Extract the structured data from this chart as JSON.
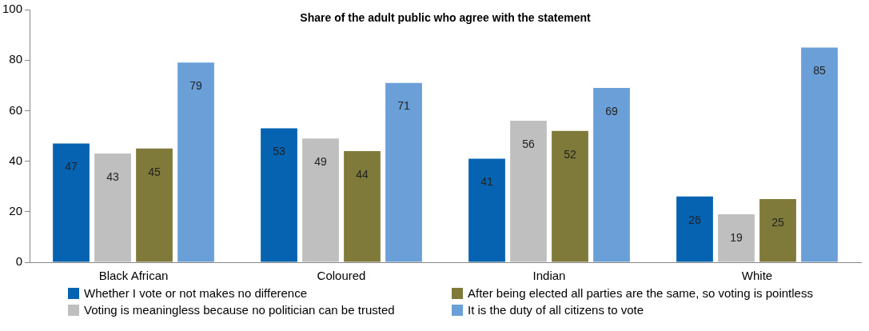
{
  "chart_data": {
    "type": "bar",
    "title": "Share of the adult public who agree with the statement",
    "categories": [
      "Black African",
      "Coloured",
      "Indian",
      "White"
    ],
    "series": [
      {
        "name": "Whether I vote or not makes no difference",
        "color": "#0563b1",
        "values": [
          47,
          53,
          41,
          26
        ]
      },
      {
        "name": "Voting is meaningless because no politician can be trusted",
        "color": "#bfbfbf",
        "values": [
          43,
          49,
          56,
          19
        ]
      },
      {
        "name": "After being elected all parties are the same, so voting is pointless",
        "color": "#7f7a3a",
        "values": [
          45,
          44,
          52,
          25
        ]
      },
      {
        "name": "It is the duty of all citizens to vote",
        "color": "#6a9fd8",
        "values": [
          79,
          71,
          69,
          85
        ]
      }
    ],
    "ylim": [
      0,
      100
    ],
    "yticks": [
      0,
      20,
      40,
      60,
      80,
      100
    ],
    "grid": false,
    "legend": "bottom",
    "data_labels": true
  }
}
